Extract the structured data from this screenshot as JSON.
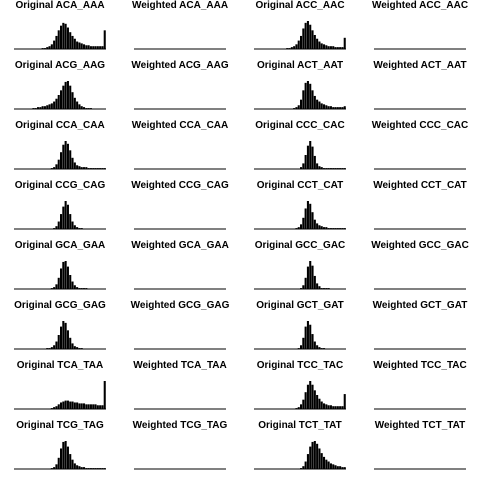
{
  "chart_data": {
    "type": "bar",
    "layout": "grid",
    "rows": 8,
    "cols": 4,
    "x_range": [
      0,
      40
    ],
    "colors": {
      "bar": "#000000",
      "axis": "#000000",
      "background": "#ffffff"
    },
    "panels": [
      {
        "title": "Original ACA_AAA",
        "values": [
          0,
          0,
          0,
          0,
          0,
          0,
          0,
          0,
          0,
          0,
          0,
          0,
          1,
          1,
          2,
          3,
          5,
          9,
          14,
          20,
          25,
          28,
          27,
          23,
          18,
          14,
          11,
          8,
          7,
          6,
          5,
          4,
          4,
          3,
          3,
          3,
          3,
          3,
          3,
          20
        ]
      },
      {
        "title": "Weighted ACA_AAA",
        "values": []
      },
      {
        "title": "Original ACC_AAC",
        "values": [
          0,
          0,
          0,
          0,
          0,
          0,
          0,
          0,
          0,
          0,
          0,
          0,
          0,
          0,
          1,
          1,
          2,
          3,
          5,
          9,
          14,
          22,
          28,
          30,
          26,
          20,
          15,
          11,
          8,
          6,
          5,
          4,
          3,
          3,
          3,
          2,
          2,
          2,
          2,
          12
        ]
      },
      {
        "title": "Weighted ACC_AAC",
        "values": []
      },
      {
        "title": "Original ACG_AAG",
        "values": [
          0,
          0,
          0,
          0,
          0,
          0,
          0,
          0,
          1,
          1,
          2,
          2,
          3,
          3,
          4,
          5,
          6,
          8,
          11,
          15,
          20,
          25,
          29,
          30,
          25,
          18,
          12,
          8,
          5,
          3,
          2,
          1,
          1,
          1,
          0,
          0,
          0,
          0,
          0,
          0
        ]
      },
      {
        "title": "Weighted ACG_AAG",
        "values": []
      },
      {
        "title": "Original ACT_AAT",
        "values": [
          0,
          0,
          0,
          0,
          0,
          0,
          0,
          0,
          0,
          0,
          0,
          0,
          0,
          0,
          0,
          0,
          0,
          1,
          2,
          4,
          10,
          20,
          28,
          30,
          27,
          20,
          14,
          10,
          8,
          6,
          5,
          4,
          3,
          3,
          2,
          2,
          2,
          2,
          2,
          3
        ]
      },
      {
        "title": "Weighted ACT_AAT",
        "values": []
      },
      {
        "title": "Original CCA_CAA",
        "values": [
          0,
          0,
          0,
          0,
          0,
          0,
          0,
          0,
          0,
          0,
          0,
          0,
          0,
          0,
          0,
          0,
          1,
          2,
          5,
          10,
          18,
          26,
          30,
          27,
          20,
          12,
          7,
          4,
          3,
          2,
          2,
          2,
          1,
          1,
          1,
          1,
          1,
          1,
          1,
          1
        ]
      },
      {
        "title": "Weighted CCA_CAA",
        "values": []
      },
      {
        "title": "Original CCC_CAC",
        "values": [
          0,
          0,
          0,
          0,
          0,
          0,
          0,
          0,
          0,
          0,
          0,
          0,
          0,
          0,
          0,
          0,
          0,
          0,
          0,
          0,
          2,
          6,
          15,
          25,
          30,
          24,
          14,
          6,
          3,
          2,
          1,
          1,
          1,
          1,
          1,
          1,
          1,
          1,
          1,
          1
        ]
      },
      {
        "title": "Weighted CCC_CAC",
        "values": []
      },
      {
        "title": "Original CCG_CAG",
        "values": [
          0,
          0,
          0,
          0,
          0,
          0,
          0,
          0,
          0,
          0,
          0,
          0,
          0,
          0,
          0,
          0,
          0,
          1,
          3,
          8,
          16,
          24,
          30,
          26,
          16,
          8,
          4,
          2,
          1,
          1,
          0,
          0,
          0,
          0,
          0,
          0,
          0,
          0,
          0,
          0
        ]
      },
      {
        "title": "Weighted CCG_CAG",
        "values": []
      },
      {
        "title": "Original CCT_CAT",
        "values": [
          0,
          0,
          0,
          0,
          0,
          0,
          0,
          0,
          0,
          0,
          0,
          0,
          0,
          0,
          0,
          0,
          0,
          0,
          1,
          2,
          5,
          12,
          22,
          30,
          27,
          18,
          10,
          6,
          4,
          3,
          2,
          2,
          1,
          1,
          1,
          1,
          1,
          1,
          1,
          1
        ]
      },
      {
        "title": "Weighted CCT_CAT",
        "values": []
      },
      {
        "title": "Original GCA_GAA",
        "values": [
          0,
          0,
          0,
          0,
          0,
          0,
          0,
          0,
          0,
          0,
          0,
          0,
          0,
          0,
          0,
          0,
          1,
          2,
          5,
          12,
          22,
          29,
          30,
          24,
          15,
          8,
          4,
          2,
          1,
          1,
          1,
          1,
          0,
          0,
          0,
          0,
          0,
          0,
          0,
          0
        ]
      },
      {
        "title": "Weighted GCA_GAA",
        "values": []
      },
      {
        "title": "Original GCC_GAC",
        "values": [
          0,
          0,
          0,
          0,
          0,
          0,
          0,
          0,
          0,
          0,
          0,
          0,
          0,
          0,
          0,
          0,
          0,
          0,
          0,
          0,
          1,
          4,
          12,
          24,
          30,
          25,
          14,
          6,
          3,
          1,
          1,
          1,
          1,
          0,
          0,
          0,
          0,
          0,
          0,
          0
        ]
      },
      {
        "title": "Weighted GCC_GAC",
        "values": []
      },
      {
        "title": "Original GCG_GAG",
        "values": [
          0,
          0,
          0,
          0,
          0,
          0,
          0,
          0,
          0,
          0,
          0,
          0,
          0,
          0,
          1,
          1,
          2,
          4,
          8,
          15,
          24,
          30,
          28,
          20,
          12,
          6,
          3,
          2,
          1,
          1,
          0,
          0,
          0,
          0,
          0,
          0,
          0,
          0,
          0,
          0
        ]
      },
      {
        "title": "Weighted GCG_GAG",
        "values": []
      },
      {
        "title": "Original GCT_GAT",
        "values": [
          0,
          0,
          0,
          0,
          0,
          0,
          0,
          0,
          0,
          0,
          0,
          0,
          0,
          0,
          0,
          0,
          0,
          0,
          0,
          1,
          4,
          12,
          24,
          30,
          26,
          16,
          8,
          4,
          2,
          1,
          1,
          0,
          0,
          0,
          0,
          0,
          0,
          0,
          0,
          0
        ]
      },
      {
        "title": "Weighted GCT_GAT",
        "values": []
      },
      {
        "title": "Original TCA_TAA",
        "values": [
          0,
          0,
          0,
          0,
          0,
          0,
          0,
          0,
          0,
          0,
          0,
          0,
          0,
          0,
          0,
          0,
          1,
          2,
          3,
          5,
          7,
          8,
          9,
          9,
          8,
          8,
          7,
          7,
          6,
          6,
          6,
          5,
          5,
          5,
          5,
          5,
          4,
          4,
          4,
          30
        ]
      },
      {
        "title": "Weighted TCA_TAA",
        "values": []
      },
      {
        "title": "Original TCC_TAC",
        "values": [
          0,
          0,
          0,
          0,
          0,
          0,
          0,
          0,
          0,
          0,
          0,
          0,
          0,
          0,
          0,
          0,
          0,
          0,
          1,
          2,
          5,
          10,
          18,
          26,
          30,
          26,
          20,
          15,
          11,
          8,
          6,
          5,
          4,
          4,
          3,
          3,
          3,
          3,
          3,
          16
        ]
      },
      {
        "title": "Weighted TCC_TAC",
        "values": []
      },
      {
        "title": "Original TCG_TAG",
        "values": [
          0,
          0,
          0,
          0,
          0,
          0,
          0,
          0,
          0,
          0,
          0,
          0,
          0,
          0,
          0,
          0,
          1,
          2,
          5,
          12,
          22,
          29,
          30,
          24,
          16,
          10,
          6,
          4,
          3,
          2,
          2,
          1,
          1,
          1,
          1,
          1,
          1,
          1,
          1,
          1
        ]
      },
      {
        "title": "Weighted TCG_TAG",
        "values": []
      },
      {
        "title": "Original TCT_TAT",
        "values": [
          0,
          0,
          0,
          0,
          0,
          0,
          0,
          0,
          0,
          0,
          0,
          0,
          0,
          0,
          0,
          0,
          0,
          0,
          0,
          0,
          1,
          3,
          8,
          16,
          24,
          29,
          30,
          27,
          22,
          17,
          13,
          10,
          8,
          6,
          5,
          4,
          3,
          3,
          2,
          2
        ]
      },
      {
        "title": "Weighted TCT_TAT",
        "values": []
      }
    ]
  }
}
